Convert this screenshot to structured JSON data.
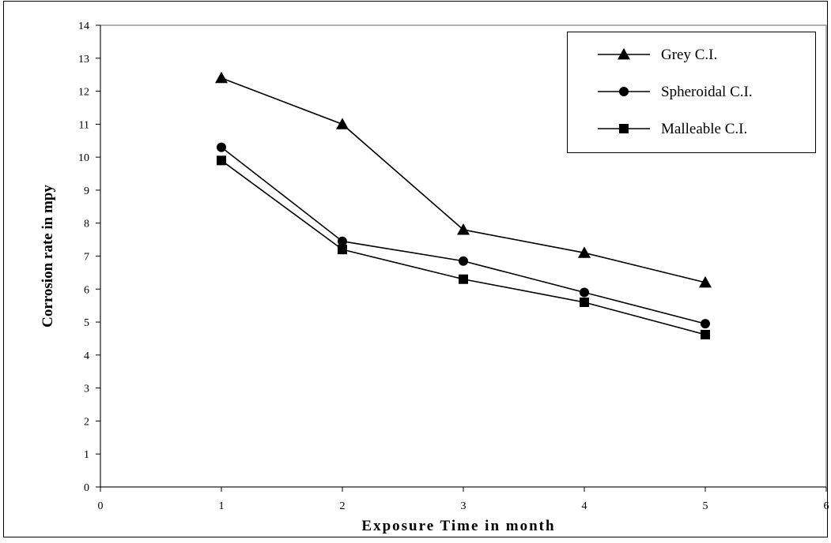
{
  "chart_data": {
    "type": "line",
    "title": "",
    "xlabel": "Exposure Time in month",
    "ylabel": "Corrosion rate in mpy",
    "xlim": [
      0,
      6
    ],
    "ylim": [
      0,
      14
    ],
    "x_ticks": [
      0,
      1,
      2,
      3,
      4,
      5,
      6
    ],
    "y_ticks": [
      0,
      1,
      2,
      3,
      4,
      5,
      6,
      7,
      8,
      9,
      10,
      11,
      12,
      13,
      14
    ],
    "grid": false,
    "legend_position": "top-right",
    "x": [
      1,
      2,
      3,
      4,
      5
    ],
    "series": [
      {
        "name": "Grey C.I.",
        "marker": "triangle",
        "color": "#000000",
        "values": [
          12.4,
          11.0,
          7.8,
          7.1,
          6.2
        ]
      },
      {
        "name": "Spheroidal C.I.",
        "marker": "circle",
        "color": "#000000",
        "values": [
          10.3,
          7.45,
          6.85,
          5.9,
          4.95
        ]
      },
      {
        "name": "Malleable C.I.",
        "marker": "square",
        "color": "#000000",
        "values": [
          9.9,
          7.2,
          6.3,
          5.6,
          4.62
        ]
      }
    ]
  }
}
